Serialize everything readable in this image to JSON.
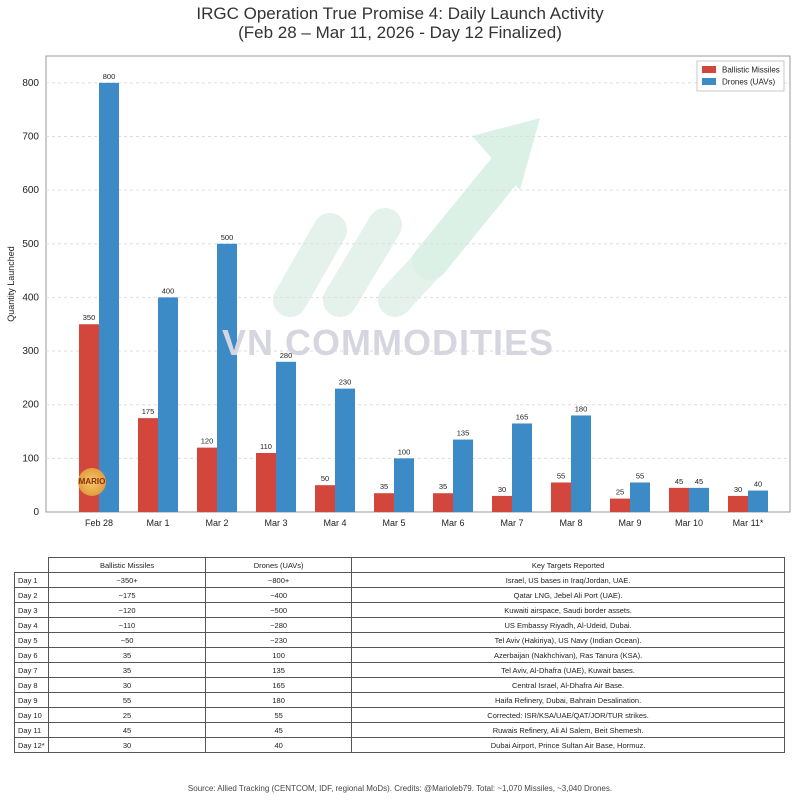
{
  "chart_data": {
    "type": "bar",
    "title": "IRGC Operation True Promise 4: Daily Launch Activity",
    "subtitle": "(Feb 28 – Mar 11, 2026 - Day 12 Finalized)",
    "ylabel": "Quantity Launched",
    "xlabel": "",
    "ylim": [
      0,
      850
    ],
    "yticks": [
      0,
      100,
      200,
      300,
      400,
      500,
      600,
      700,
      800
    ],
    "categories": [
      "Feb 28",
      "Mar 1",
      "Mar 2",
      "Mar 3",
      "Mar 4",
      "Mar 5",
      "Mar 6",
      "Mar 7",
      "Mar 8",
      "Mar 9",
      "Mar 10",
      "Mar 11*"
    ],
    "series": [
      {
        "name": "Ballistic Missiles",
        "color": "#d3463c",
        "values": [
          350,
          175,
          120,
          110,
          50,
          35,
          35,
          30,
          55,
          25,
          45,
          30
        ]
      },
      {
        "name": "Drones (UAVs)",
        "color": "#3d8bc6",
        "values": [
          800,
          400,
          500,
          280,
          230,
          100,
          135,
          165,
          180,
          55,
          45,
          40
        ]
      }
    ],
    "legend": "top-right",
    "grid": true
  },
  "watermark": "VN COMMODITIES",
  "badge": "MARIO",
  "table": {
    "headers": [
      "",
      "Ballistic Missiles",
      "Drones (UAVs)",
      "Key Targets Reported"
    ],
    "rows": [
      [
        "Day 1",
        "~350+",
        "~800+",
        "Israel, US bases in Iraq/Jordan, UAE."
      ],
      [
        "Day 2",
        "~175",
        "~400",
        "Qatar LNG, Jebel Ali Port (UAE)."
      ],
      [
        "Day 3",
        "~120",
        "~500",
        "Kuwaiti airspace, Saudi border assets."
      ],
      [
        "Day 4",
        "~110",
        "~280",
        "US Embassy Riyadh, Al-Udeid, Dubai."
      ],
      [
        "Day 5",
        "~50",
        "~230",
        "Tel Aviv (Hakiriya), US Navy (Indian Ocean)."
      ],
      [
        "Day 6",
        "35",
        "100",
        "Azerbaijan (Nakhchivan), Ras Tanura (KSA)."
      ],
      [
        "Day 7",
        "35",
        "135",
        "Tel Aviv, Al-Dhafra (UAE), Kuwait bases."
      ],
      [
        "Day 8",
        "30",
        "165",
        "Central Israel, Al-Dhafra Air Base."
      ],
      [
        "Day 9",
        "55",
        "180",
        "Haifa Refinery, Dubai, Bahrain Desalination."
      ],
      [
        "Day 10",
        "25",
        "55",
        "Corrected: ISR/KSA/UAE/QAT/JOR/TUR strikes."
      ],
      [
        "Day 11",
        "45",
        "45",
        "Ruwais Refinery, Ali Al Salem, Beit Shemesh."
      ],
      [
        "Day 12*",
        "30",
        "40",
        "Dubai Airport, Prince Sultan Air Base, Hormuz."
      ]
    ]
  },
  "source": "Source: Allied Tracking (CENTCOM, IDF, regional MoDs). Credits: @Marioleb79. Total: ~1,070 Missiles, ~3,040 Drones."
}
